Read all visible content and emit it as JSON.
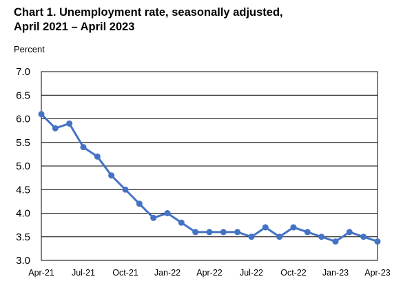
{
  "chart_data": {
    "type": "line",
    "title": "Chart 1. Unemployment rate, seasonally adjusted,",
    "subtitle": "April 2021 – April 2023",
    "ylabel": "Percent",
    "xlabel": "",
    "ylim": [
      3.0,
      7.0
    ],
    "yticks": [
      "7.0",
      "6.5",
      "6.0",
      "5.5",
      "5.0",
      "4.5",
      "4.0",
      "3.5",
      "3.0"
    ],
    "xtick_labels": [
      "Apr-21",
      "Jul-21",
      "Oct-21",
      "Jan-22",
      "Apr-22",
      "Jul-22",
      "Oct-22",
      "Jan-23",
      "Apr-23"
    ],
    "grid": "horizontal",
    "line_color": "#4472c4",
    "series": [
      {
        "x": [
          "2021-04",
          "2021-05",
          "2021-06",
          "2021-07",
          "2021-08",
          "2021-09",
          "2021-10",
          "2021-11",
          "2021-12",
          "2022-01",
          "2022-02",
          "2022-03",
          "2022-04",
          "2022-05",
          "2022-06",
          "2022-07",
          "2022-08",
          "2022-09",
          "2022-10",
          "2022-11",
          "2022-12",
          "2023-01",
          "2023-02",
          "2023-03",
          "2023-04"
        ],
        "values": [
          6.1,
          5.8,
          5.9,
          5.4,
          5.2,
          4.8,
          4.5,
          4.2,
          3.9,
          4.0,
          3.8,
          3.6,
          3.6,
          3.6,
          3.6,
          3.5,
          3.7,
          3.5,
          3.7,
          3.6,
          3.5,
          3.4,
          3.6,
          3.5,
          3.4
        ]
      }
    ]
  }
}
